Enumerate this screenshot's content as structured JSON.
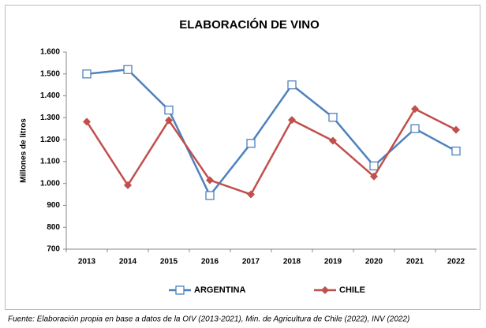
{
  "chart_data": {
    "type": "line",
    "title": "ELABORACIÓN DE VINO",
    "y_label": "Millones de litros",
    "categories": [
      "2013",
      "2014",
      "2015",
      "2016",
      "2017",
      "2018",
      "2019",
      "2020",
      "2021",
      "2022"
    ],
    "series": [
      {
        "name": "ARGENTINA",
        "color": "#4f81bd",
        "marker": "square",
        "values": [
          1500,
          1520,
          1335,
          945,
          1183,
          1450,
          1302,
          1080,
          1250,
          1148
        ]
      },
      {
        "name": "CHILE",
        "color": "#c0504d",
        "marker": "diamond",
        "values": [
          1282,
          992,
          1288,
          1015,
          950,
          1290,
          1195,
          1032,
          1340,
          1245
        ]
      }
    ],
    "ylim": [
      700,
      1600
    ],
    "yticks": [
      700,
      800,
      900,
      {
        "value": 1000,
        "label": "1.000"
      },
      {
        "value": 1100,
        "label": "1.100"
      },
      {
        "value": 1200,
        "label": "1.200"
      },
      {
        "value": 1300,
        "label": "1.300"
      },
      {
        "value": 1400,
        "label": "1.400"
      },
      {
        "value": 1500,
        "label": "1.500"
      },
      {
        "value": 1600,
        "label": "1.600"
      }
    ],
    "grid": false,
    "legend": "bottom",
    "source": "Fuente: Elaboración propia en base a datos de la OIV (2013-2021), Min. de Agricultura de Chile (2022), INV (2022)"
  }
}
